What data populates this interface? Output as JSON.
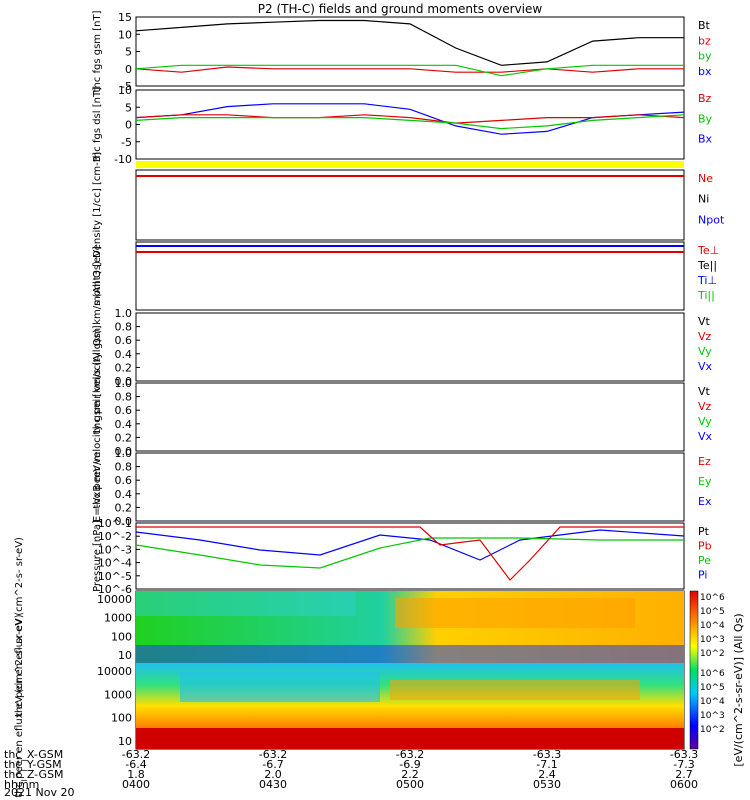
{
  "title": "P2 (TH-C) fields and ground moments overview",
  "colors": {
    "black": "#000000",
    "red": "#e00000",
    "green": "#00c800",
    "blue": "#0000ff",
    "yellow": "#ffff00"
  },
  "colorbar": {
    "label": "[eV/(cm^2-s-sr-eV)] (All Qs)",
    "ticks": [
      "10^6",
      "10^5",
      "10^4",
      "10^3",
      "10^2"
    ],
    "ticks2": [
      "10^6",
      "10^5",
      "10^4",
      "10^3",
      "10^2"
    ]
  },
  "xaxis": {
    "time_ticks": [
      "0400",
      "0430",
      "0500",
      "0530",
      "0600"
    ],
    "rows": [
      {
        "label": "thc_X-GSM",
        "values": [
          "-63.2",
          "-63.2",
          "-63.2",
          "-63.3",
          "-63.3"
        ]
      },
      {
        "label": "thc_Y-GSM",
        "values": [
          "-6.4",
          "-6.7",
          "-6.9",
          "-7.1",
          "-7.3"
        ]
      },
      {
        "label": "thc_Z-GSM",
        "values": [
          "1.8",
          "2.0",
          "2.2",
          "2.4",
          "2.7"
        ]
      },
      {
        "label": "hhmm",
        "values": [
          "0400",
          "0430",
          "0500",
          "0530",
          "0600"
        ]
      }
    ],
    "date": "2021 Nov 20"
  },
  "chart_data": [
    {
      "type": "line",
      "panel": "fgs_gsm",
      "ylabel": "thc\nfgs\ngsm\n[nT]",
      "ylim": [
        -5,
        15
      ],
      "yticks": [
        "15",
        "10",
        "5",
        "0",
        "-5"
      ],
      "legend": [
        {
          "name": "Bt",
          "color": "black"
        },
        {
          "name": "bz",
          "color": "red"
        },
        {
          "name": "by",
          "color": "green"
        },
        {
          "name": "bx",
          "color": "blue"
        }
      ],
      "x": [
        "0400",
        "0410",
        "0420",
        "0430",
        "0440",
        "0450",
        "0500",
        "0510",
        "0520",
        "0530",
        "0540",
        "0550",
        "0600"
      ],
      "series": [
        {
          "name": "Bt",
          "values": [
            11,
            12,
            13,
            13.5,
            14,
            14,
            13,
            6,
            1,
            2,
            8,
            9,
            9
          ]
        },
        {
          "name": "bz",
          "values": [
            0,
            -1,
            0.5,
            0,
            0,
            0,
            0,
            -1,
            -1,
            0,
            -1,
            0,
            0
          ]
        },
        {
          "name": "by",
          "values": [
            0,
            1,
            1,
            1,
            1,
            1,
            1,
            1,
            -2,
            0,
            1,
            1,
            1
          ]
        }
      ]
    },
    {
      "type": "line",
      "panel": "fgs_dsl",
      "ylabel": "thc\nfgs\ndsl\n[nT]",
      "ylim": [
        -15,
        10
      ],
      "yticks": [
        "10",
        "5",
        "0",
        "-5",
        "-10"
      ],
      "legend": [
        {
          "name": "Bz",
          "color": "red"
        },
        {
          "name": "By",
          "color": "green"
        },
        {
          "name": "Bx",
          "color": "blue"
        }
      ],
      "x": [
        "0400",
        "0410",
        "0420",
        "0430",
        "0440",
        "0450",
        "0500",
        "0510",
        "0520",
        "0530",
        "0540",
        "0550",
        "0600"
      ],
      "series": [
        {
          "name": "Bx",
          "values": [
            0,
            1,
            4,
            5,
            5,
            5,
            3,
            -3,
            -6,
            -5,
            0,
            1,
            2
          ]
        },
        {
          "name": "Bz",
          "values": [
            0,
            1,
            1,
            0,
            0,
            1,
            0,
            -2,
            -1,
            0,
            0,
            1,
            0
          ]
        },
        {
          "name": "By",
          "values": [
            -1,
            0,
            0,
            0,
            0,
            0,
            -1,
            -2,
            -4,
            -3,
            -1,
            0,
            1
          ]
        }
      ]
    },
    {
      "type": "line",
      "panel": "density",
      "ylabel": "Density\n[1/cc]\n[cm-3]",
      "ylim": [
        "10^-14",
        "10^2"
      ],
      "legend": [
        {
          "name": "Ne",
          "color": "red"
        },
        {
          "name": "Ni",
          "color": "black"
        },
        {
          "name": "Npot",
          "color": "blue"
        }
      ]
    },
    {
      "type": "line",
      "panel": "temperature",
      "ylabel": "momt3\n[eV]",
      "legend": [
        {
          "name": "Te⊥",
          "color": "red"
        },
        {
          "name": "Te||",
          "color": "black"
        },
        {
          "name": "Ti⊥",
          "color": "blue"
        },
        {
          "name": "Ti||",
          "color": "green"
        }
      ]
    },
    {
      "type": "line",
      "panel": "peir_velocity",
      "ylabel": "thc\npeir\nvelocity\ngsm\nkm/s (All Qs)",
      "ylim": [
        0,
        1
      ],
      "yticks": [
        "1.0",
        "0.8",
        "0.6",
        "0.4",
        "0.2",
        "0.0"
      ],
      "legend": [
        {
          "name": "Vt",
          "color": "black"
        },
        {
          "name": "Vz",
          "color": "red"
        },
        {
          "name": "Vy",
          "color": "green"
        },
        {
          "name": "Vx",
          "color": "blue"
        }
      ]
    },
    {
      "type": "line",
      "panel": "peer_velocity",
      "ylabel": "thc\npeer\nvelocity\ngsm\n[km/s (All Qs)]",
      "ylim": [
        0,
        1
      ],
      "yticks": [
        "1.0",
        "0.8",
        "0.6",
        "0.4",
        "0.2",
        "0.0"
      ],
      "legend": [
        {
          "name": "Vt",
          "color": "black"
        },
        {
          "name": "Vz",
          "color": "red"
        },
        {
          "name": "Vy",
          "color": "green"
        },
        {
          "name": "Vx",
          "color": "blue"
        }
      ]
    },
    {
      "type": "line",
      "panel": "efield",
      "ylabel": "E=-VxB\nmV/m",
      "ylim": [
        0,
        1
      ],
      "yticks": [
        "1.0",
        "0.8",
        "0.6",
        "0.4",
        "0.2",
        "0.0"
      ],
      "legend": [
        {
          "name": "Ez",
          "color": "red"
        },
        {
          "name": "Ey",
          "color": "green"
        },
        {
          "name": "Ex",
          "color": "blue"
        }
      ]
    },
    {
      "type": "line",
      "panel": "pressure",
      "ylabel": "Pressure\n[nPa]",
      "yticks": [
        "10^-1",
        "10^-2",
        "10^-3",
        "10^-4",
        "10^-5",
        "10^-6"
      ],
      "legend": [
        {
          "name": "Pt",
          "color": "black"
        },
        {
          "name": "Pb",
          "color": "red"
        },
        {
          "name": "Pe",
          "color": "green"
        },
        {
          "name": "Pi",
          "color": "blue"
        }
      ]
    },
    {
      "type": "heatmap",
      "panel": "peir_spectrogram",
      "ylabel": "thc\npeir\nen\neflux\neV\n(cm^2-s-\nsr-eV)",
      "yticks": [
        "10000",
        "1000",
        "100",
        "10"
      ]
    },
    {
      "type": "heatmap",
      "panel": "peer_spectrogram",
      "ylabel": "thc\npeer\nen\neflux\neV\n(cm^2-s-\nsr-eV)",
      "yticks": [
        "10000",
        "1000",
        "100",
        "10"
      ]
    }
  ]
}
